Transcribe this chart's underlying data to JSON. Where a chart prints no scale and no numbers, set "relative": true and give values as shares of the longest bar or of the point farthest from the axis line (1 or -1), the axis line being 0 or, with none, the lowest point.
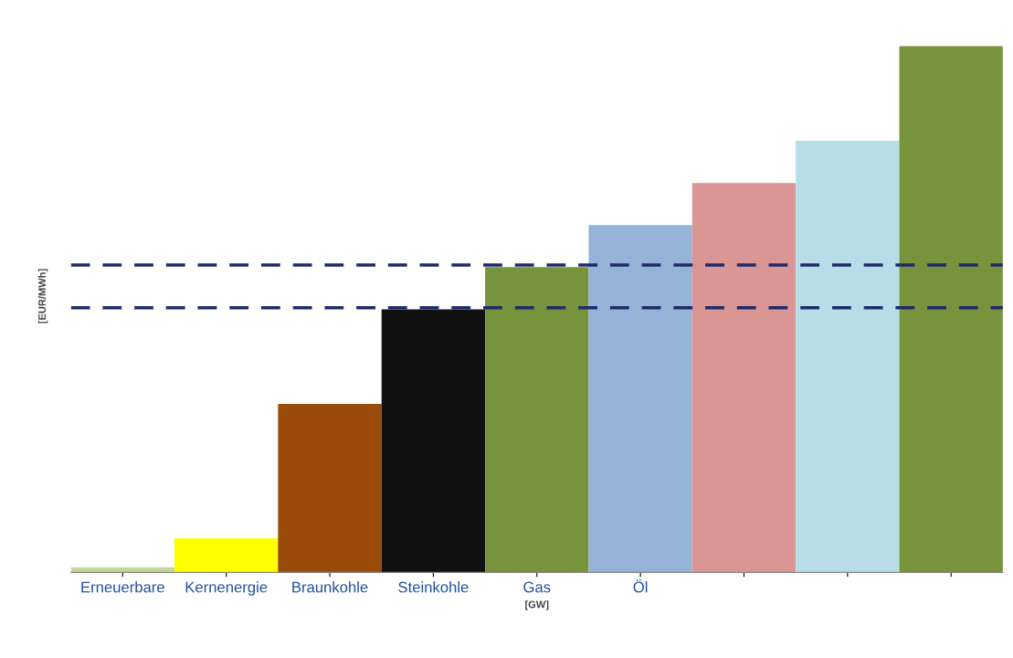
{
  "chart_data": {
    "type": "bar",
    "relative": true,
    "xlabel": "[GW]",
    "ylabel": "[EUR/MWh]",
    "categories": [
      "Erneuerbare",
      "Kernenergie",
      "Braunkohle",
      "Steinkohle",
      "Gas",
      "Öl",
      null,
      null,
      null
    ],
    "values": [
      0.01,
      0.065,
      0.32,
      0.5,
      0.58,
      0.66,
      0.74,
      0.82,
      1.0
    ],
    "colors": [
      "#c4d79b",
      "#ffff00",
      "#9a4b0a",
      "#111111",
      "#77933c",
      "#95b3d7",
      "#d99694",
      "#b7dee8",
      "#77933c"
    ],
    "ref_lines": [
      {
        "axis": "y",
        "value": 0.584,
        "label": null,
        "color": "#1f2a6b",
        "line_style": "dashed"
      },
      {
        "axis": "y",
        "value": 0.503,
        "label": null,
        "color": "#1f2a6b",
        "line_style": "dashed"
      }
    ]
  }
}
